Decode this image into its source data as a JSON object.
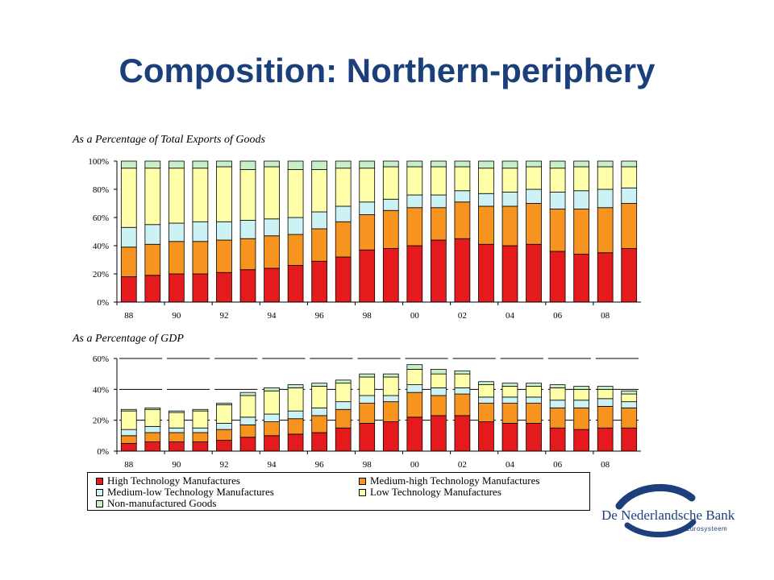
{
  "slide": {
    "title": "Composition: Northern-periphery",
    "logo": {
      "name": "De Nederlandsche Bank",
      "subtitle": "Eurosysteem",
      "color": "#1d3f7b"
    }
  },
  "categories": [
    {
      "key": "high",
      "label": "High Technology Manufactures",
      "color": "#e41a1c"
    },
    {
      "key": "medhigh",
      "label": "Medium-high Technology Manufactures",
      "color": "#f79420"
    },
    {
      "key": "medlow",
      "label": "Medium-low Technology Manufactures",
      "color": "#ccf2f5"
    },
    {
      "key": "low",
      "label": "Low Technology Manufactures",
      "color": "#ffffaa"
    },
    {
      "key": "nonmfg",
      "label": "Non-manufactured Goods",
      "color": "#c8f0c8"
    }
  ],
  "chart_data": [
    {
      "type": "bar",
      "stacked": true,
      "title": "As a Percentage of Total Exports of Goods",
      "xlabel": "",
      "ylabel": "",
      "ylim": [
        0,
        100
      ],
      "yticks": [
        "0%",
        "20%",
        "40%",
        "60%",
        "80%",
        "100%"
      ],
      "xtick_labels": [
        "88",
        "90",
        "92",
        "94",
        "96",
        "98",
        "00",
        "02",
        "04",
        "06",
        "08"
      ],
      "categories": [
        "1988",
        "1989",
        "1990",
        "1991",
        "1992",
        "1993",
        "1994",
        "1995",
        "1996",
        "1997",
        "1998",
        "1999",
        "2000",
        "2001",
        "2002",
        "2003",
        "2004",
        "2005",
        "2006",
        "2007",
        "2008",
        "2009"
      ],
      "series": [
        {
          "name": "High Technology Manufactures",
          "values": [
            18,
            19,
            20,
            20,
            21,
            23,
            24,
            26,
            29,
            32,
            37,
            38,
            40,
            44,
            45,
            41,
            40,
            41,
            36,
            34,
            35,
            38
          ]
        },
        {
          "name": "Medium-high Technology Manufactures",
          "values": [
            21,
            22,
            23,
            23,
            23,
            22,
            23,
            22,
            23,
            25,
            25,
            27,
            27,
            23,
            26,
            27,
            28,
            29,
            30,
            32,
            32,
            32
          ]
        },
        {
          "name": "Medium-low Technology Manufactures",
          "values": [
            14,
            14,
            13,
            14,
            13,
            13,
            12,
            12,
            12,
            11,
            9,
            8,
            9,
            9,
            8,
            9,
            10,
            10,
            12,
            13,
            13,
            11
          ]
        },
        {
          "name": "Low Technology Manufactures",
          "values": [
            42,
            40,
            39,
            38,
            39,
            36,
            37,
            34,
            30,
            27,
            24,
            23,
            20,
            20,
            17,
            18,
            17,
            16,
            17,
            17,
            16,
            15
          ]
        },
        {
          "name": "Non-manufactured Goods",
          "values": [
            5,
            5,
            5,
            5,
            4,
            6,
            4,
            6,
            6,
            5,
            5,
            4,
            4,
            4,
            4,
            5,
            5,
            4,
            5,
            4,
            4,
            4
          ]
        }
      ]
    },
    {
      "type": "bar",
      "stacked": true,
      "title": "As a Percentage of  GDP",
      "xlabel": "",
      "ylabel": "",
      "ylim": [
        0,
        60
      ],
      "yticks": [
        "0%",
        "20%",
        "40%",
        "60%"
      ],
      "xtick_labels": [
        "88",
        "90",
        "92",
        "94",
        "96",
        "98",
        "00",
        "02",
        "04",
        "06",
        "08"
      ],
      "categories": [
        "1988",
        "1989",
        "1990",
        "1991",
        "1992",
        "1993",
        "1994",
        "1995",
        "1996",
        "1997",
        "1998",
        "1999",
        "2000",
        "2001",
        "2002",
        "2003",
        "2004",
        "2005",
        "2006",
        "2007",
        "2008",
        "2009"
      ],
      "series": [
        {
          "name": "High Technology Manufactures",
          "values": [
            5,
            6,
            6,
            6,
            7,
            9,
            10,
            11,
            12,
            15,
            18,
            19,
            22,
            23,
            23,
            19,
            18,
            18,
            15,
            14,
            15,
            15
          ]
        },
        {
          "name": "Medium-high Technology Manufactures",
          "values": [
            5,
            6,
            6,
            6,
            7,
            8,
            9,
            10,
            11,
            12,
            13,
            13,
            16,
            13,
            14,
            12,
            13,
            13,
            13,
            14,
            14,
            13
          ]
        },
        {
          "name": "Medium-low Technology Manufactures",
          "values": [
            4,
            4,
            3,
            3,
            4,
            5,
            5,
            5,
            5,
            5,
            5,
            4,
            5,
            5,
            4,
            4,
            4,
            4,
            5,
            5,
            5,
            4
          ]
        },
        {
          "name": "Low Technology Manufactures",
          "values": [
            12,
            11,
            10,
            11,
            12,
            14,
            15,
            15,
            14,
            12,
            12,
            12,
            10,
            9,
            9,
            8,
            7,
            7,
            8,
            7,
            6,
            5
          ]
        },
        {
          "name": "Non-manufactured Goods",
          "values": [
            1,
            1,
            1,
            1,
            1,
            2,
            2,
            2,
            2,
            2,
            2,
            2,
            3,
            3,
            2,
            2,
            2,
            2,
            2,
            2,
            2,
            2
          ]
        }
      ]
    }
  ]
}
